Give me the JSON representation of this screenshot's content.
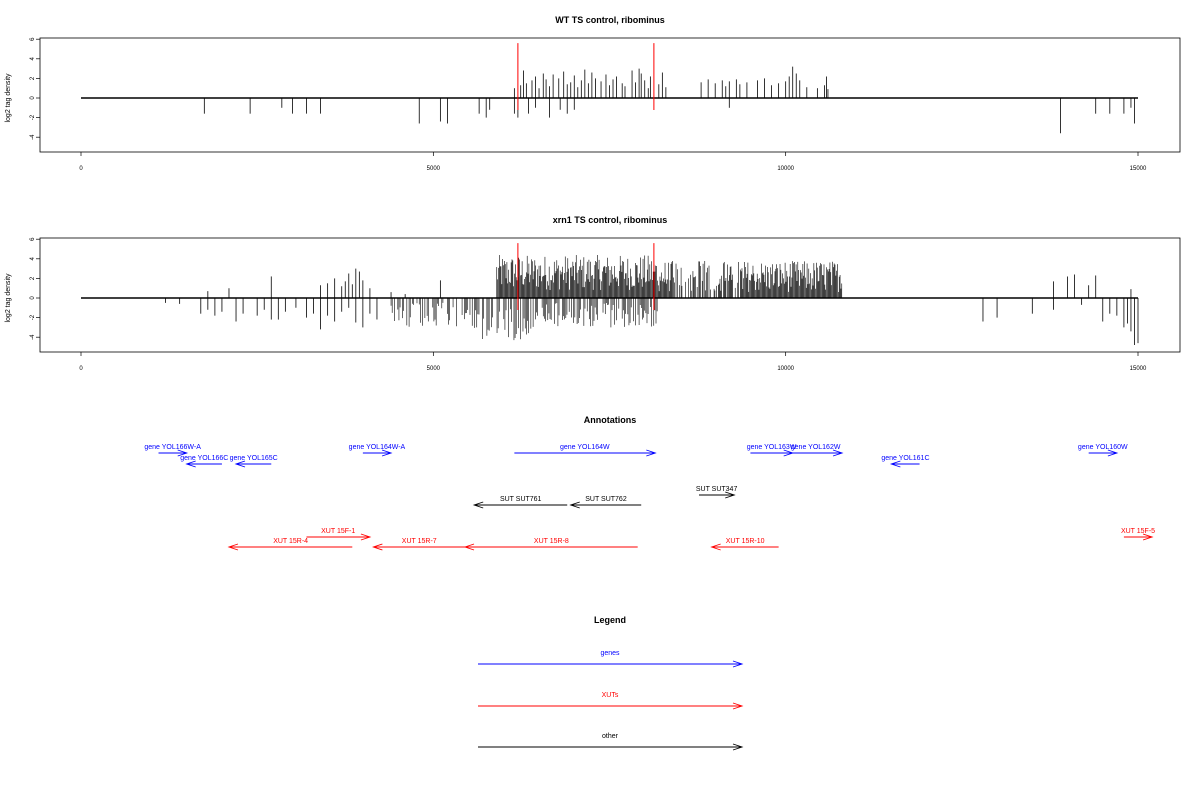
{
  "chart_data": [
    {
      "type": "bar",
      "title": "WT TS control, ribominus",
      "ylabel": "log2 tag density",
      "xlim": [
        0,
        15000
      ],
      "ylim": [
        -5,
        6
      ],
      "xticks": [
        "0",
        "5000",
        "10000",
        "15000"
      ],
      "yticks": [
        "-4",
        "-2",
        "0",
        "2",
        "4",
        "6"
      ],
      "red_markers_x": [
        6200,
        8130
      ],
      "red_marker_height": 5.6,
      "positive_bars": {
        "x": [
          6150,
          6240,
          6280,
          6320,
          6400,
          6450,
          6500,
          6560,
          6600,
          6650,
          6700,
          6780,
          6850,
          6900,
          6950,
          7000,
          7050,
          7100,
          7150,
          7200,
          7250,
          7300,
          7380,
          7450,
          7500,
          7550,
          7600,
          7680,
          7720,
          7820,
          7870,
          7920,
          7950,
          8000,
          8050,
          8080,
          8200,
          8250,
          8300,
          8800,
          8900,
          9000,
          9100,
          9150,
          9200,
          9300,
          9350,
          9450,
          9600,
          9700,
          9800,
          9900,
          10000,
          10050,
          10100,
          10150,
          10200,
          10300,
          10450,
          10550,
          10580,
          10600
        ],
        "y": [
          1.0,
          1.3,
          2.8,
          1.5,
          1.8,
          2.2,
          1.0,
          2.5,
          1.9,
          1.2,
          2.4,
          2.0,
          2.7,
          1.4,
          1.6,
          2.3,
          1.1,
          1.8,
          2.9,
          1.5,
          2.6,
          2.0,
          1.7,
          2.4,
          1.3,
          1.9,
          2.2,
          1.5,
          1.2,
          2.8,
          1.6,
          3.0,
          2.5,
          1.8,
          1.0,
          2.2,
          1.4,
          2.6,
          1.1,
          1.6,
          1.9,
          1.5,
          1.8,
          1.2,
          1.7,
          1.9,
          1.4,
          1.6,
          1.8,
          2.0,
          1.3,
          1.5,
          1.7,
          2.2,
          3.2,
          2.5,
          1.8,
          1.1,
          1.0,
          1.3,
          2.2,
          0.9
        ]
      },
      "negative_bars": {
        "x": [
          1750,
          2400,
          2850,
          3000,
          3200,
          3400,
          4800,
          5100,
          5200,
          5650,
          5750,
          5800,
          6150,
          6200,
          6350,
          6450,
          6650,
          6800,
          6900,
          7000,
          9200,
          13900,
          14400,
          14600,
          14800,
          14900,
          14950
        ],
        "y": [
          -1.6,
          -1.6,
          -1.0,
          -1.6,
          -1.6,
          -1.6,
          -2.6,
          -2.4,
          -2.6,
          -1.6,
          -2.0,
          -1.2,
          -1.6,
          -2.0,
          -1.6,
          -1.0,
          -2.0,
          -1.2,
          -1.6,
          -1.2,
          -1.0,
          -3.6,
          -1.6,
          -1.6,
          -1.6,
          -1.0,
          -2.6
        ]
      }
    },
    {
      "type": "bar",
      "title": "xrn1 TS control, ribominus",
      "ylabel": "log2 tag density",
      "xlim": [
        0,
        15000
      ],
      "ylim": [
        -5,
        6
      ],
      "xticks": [
        "0",
        "5000",
        "10000",
        "15000"
      ],
      "yticks": [
        "-4",
        "-2",
        "0",
        "2",
        "4",
        "6"
      ],
      "red_markers_x": [
        6200,
        8130
      ],
      "red_marker_height": 5.6,
      "dense_positive_range": [
        5900,
        10800
      ],
      "dense_negative_range": [
        4400,
        8200
      ],
      "positive_bars": {
        "x": [
          1800,
          2100,
          2700,
          3400,
          3500,
          3600,
          3700,
          3750,
          3800,
          3850,
          3900,
          3950,
          4000,
          4100,
          4400,
          4600,
          5100,
          13800,
          14000,
          14100,
          14300,
          14400,
          14900
        ],
        "y": [
          0.7,
          1.0,
          2.2,
          1.3,
          1.5,
          2.0,
          1.2,
          1.7,
          2.5,
          1.4,
          3.0,
          2.7,
          1.8,
          1.0,
          0.6,
          0.4,
          1.8,
          1.7,
          2.2,
          2.4,
          1.3,
          2.3,
          0.9
        ]
      },
      "negative_bars": {
        "x": [
          1200,
          1400,
          1700,
          1800,
          1900,
          2000,
          2200,
          2300,
          2500,
          2600,
          2700,
          2800,
          2900,
          3050,
          3200,
          3300,
          3400,
          3500,
          3600,
          3700,
          3800,
          3900,
          4000,
          4100,
          4200,
          12800,
          13000,
          13500,
          13800,
          14200,
          14500,
          14600,
          14700,
          14800,
          14850,
          14900,
          14950,
          15000
        ],
        "y": [
          -0.5,
          -0.6,
          -1.6,
          -1.2,
          -1.8,
          -1.4,
          -2.4,
          -1.6,
          -1.8,
          -1.2,
          -2.2,
          -2.2,
          -1.4,
          -1.0,
          -2.0,
          -1.6,
          -3.2,
          -1.8,
          -2.4,
          -1.4,
          -1.0,
          -2.5,
          -3.0,
          -1.6,
          -2.2,
          -2.4,
          -2.0,
          -1.6,
          -1.2,
          -0.7,
          -2.4,
          -1.6,
          -1.8,
          -3.0,
          -2.6,
          -3.4,
          -4.8,
          -4.6
        ]
      }
    }
  ],
  "annotations": {
    "title": "Annotations",
    "rows": [
      {
        "label": "gene YOL166W-A",
        "x1": 1100,
        "x2": 1500,
        "dir": "right",
        "row": 0,
        "cat": "gene"
      },
      {
        "label": "gene YOL166C",
        "x1": 1500,
        "x2": 2000,
        "dir": "left",
        "row": 1,
        "cat": "gene"
      },
      {
        "label": "gene YOL165C",
        "x1": 2200,
        "x2": 2700,
        "dir": "left",
        "row": 1,
        "cat": "gene"
      },
      {
        "label": "gene YOL164W-A",
        "x1": 4000,
        "x2": 4400,
        "dir": "right",
        "row": 0,
        "cat": "gene"
      },
      {
        "label": "gene YOL164W",
        "x1": 6150,
        "x2": 8150,
        "dir": "right",
        "row": 0,
        "cat": "gene"
      },
      {
        "label": "gene YOL163W",
        "x1": 9500,
        "x2": 10100,
        "dir": "right",
        "row": 0,
        "cat": "gene"
      },
      {
        "label": "gene YOL162W",
        "x1": 10050,
        "x2": 10800,
        "dir": "right",
        "row": 0,
        "cat": "gene"
      },
      {
        "label": "gene YOL161C",
        "x1": 11500,
        "x2": 11900,
        "dir": "left",
        "row": 1,
        "cat": "gene"
      },
      {
        "label": "gene YOL160W",
        "x1": 14300,
        "x2": 14700,
        "dir": "right",
        "row": 0,
        "cat": "gene"
      },
      {
        "label": "SUT SUT347",
        "x1": 8770,
        "x2": 9270,
        "dir": "right",
        "row": 2,
        "cat": "other"
      },
      {
        "label": "SUT SUT761",
        "x1": 5580,
        "x2": 6900,
        "dir": "left",
        "row": 3,
        "cat": "other"
      },
      {
        "label": "SUT SUT762",
        "x1": 6950,
        "x2": 7950,
        "dir": "left",
        "row": 3,
        "cat": "other"
      },
      {
        "label": "XUT 15F-1",
        "x1": 3200,
        "x2": 4100,
        "dir": "right",
        "row": 4,
        "cat": "xut"
      },
      {
        "label": "XUT 15F-5",
        "x1": 14800,
        "x2": 15200,
        "dir": "right",
        "row": 4,
        "cat": "xut"
      },
      {
        "label": "XUT 15R-4",
        "x1": 2100,
        "x2": 3850,
        "dir": "left",
        "row": 5,
        "cat": "xut"
      },
      {
        "label": "XUT 15R-7",
        "x1": 4150,
        "x2": 5450,
        "dir": "left",
        "row": 5,
        "cat": "xut"
      },
      {
        "label": "XUT 15R-8",
        "x1": 5450,
        "x2": 7900,
        "dir": "left",
        "row": 5,
        "cat": "xut"
      },
      {
        "label": "XUT 15R-10",
        "x1": 8950,
        "x2": 9900,
        "dir": "left",
        "row": 5,
        "cat": "xut"
      }
    ]
  },
  "legend": {
    "title": "Legend",
    "items": [
      {
        "label": "genes",
        "color": "#0000ff"
      },
      {
        "label": "XUTs",
        "color": "#ff0000"
      },
      {
        "label": "other",
        "color": "#000000"
      }
    ]
  },
  "colors": {
    "gene": "#0000ff",
    "xut": "#ff0000",
    "other": "#000000",
    "marker": "#ff0000",
    "bar": "#000000"
  }
}
